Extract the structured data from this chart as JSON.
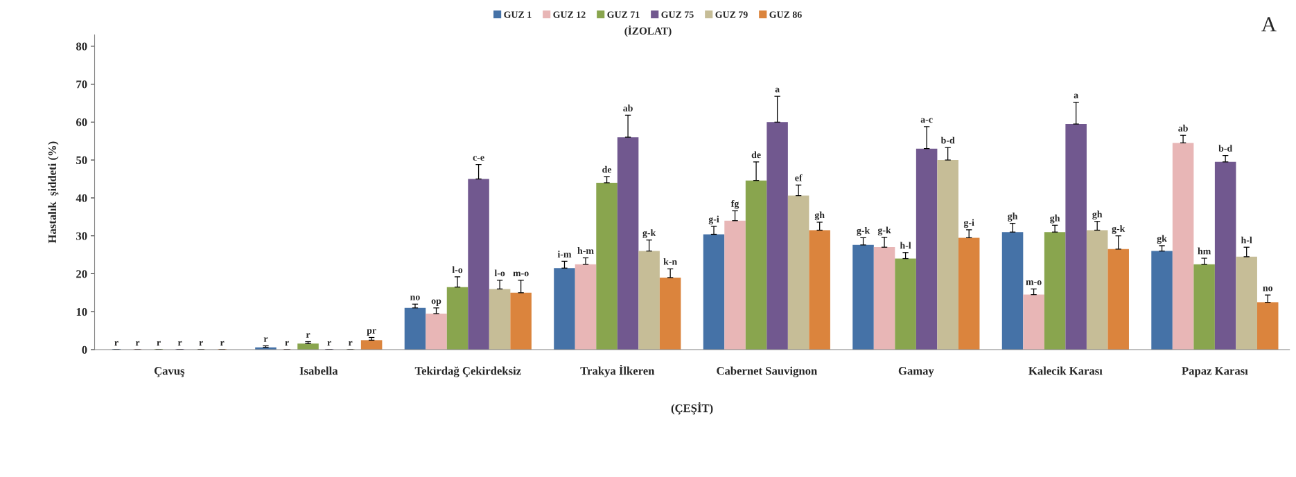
{
  "chart_data": {
    "type": "bar",
    "categories": [
      "Çavuş",
      "Isabella",
      "Tekirdağ Çekirdeksiz",
      "Trakya İlkeren",
      "Cabernet Sauvignon",
      "Gamay",
      "Kalecik Karası",
      "Papaz Karası"
    ],
    "ylabel": "Hastalık  şiddeti (%)",
    "xlabel": "(ÇEŞİT)",
    "legend_title": "(İZOLAT)",
    "annotations": [
      "A"
    ],
    "ylim": [
      0,
      83
    ],
    "yticks": [
      0,
      10,
      20,
      30,
      40,
      50,
      60,
      70,
      80
    ],
    "grid": false,
    "legend": "top",
    "series": [
      {
        "name": "GUZ 1",
        "color": "#4572a7",
        "values": [
          0,
          0.6,
          11,
          21.5,
          30.4,
          27.6,
          31,
          26
        ],
        "errors": [
          [
            0,
            0
          ],
          [
            0.6,
            1.0
          ],
          [
            11,
            12
          ],
          [
            21.5,
            23.3
          ],
          [
            30.4,
            32.5
          ],
          [
            27.6,
            29.5
          ],
          [
            31,
            33.3
          ],
          [
            26,
            27.4
          ]
        ],
        "value_labels": [
          "r",
          "r",
          "no",
          "i-m",
          "g-i",
          "g-k",
          "gh",
          "gk"
        ]
      },
      {
        "name": "GUZ 12",
        "color": "#e8b6b6",
        "values": [
          0,
          0,
          9.5,
          22.5,
          34,
          27,
          14.5,
          54.5
        ],
        "errors": [
          [
            0,
            0
          ],
          [
            0,
            0
          ],
          [
            9.5,
            11
          ],
          [
            22.5,
            24.2
          ],
          [
            34,
            36.6
          ],
          [
            27,
            29.6
          ],
          [
            14.5,
            16
          ],
          [
            54.5,
            56.5
          ]
        ],
        "value_labels": [
          "r",
          "r",
          "op",
          "h-m",
          "fg",
          "g-k",
          "m-o",
          "ab"
        ]
      },
      {
        "name": "GUZ 71",
        "color": "#89a54e",
        "values": [
          0,
          1.6,
          16.5,
          44,
          44.6,
          24,
          31,
          22.5
        ],
        "errors": [
          [
            0,
            0
          ],
          [
            1.6,
            2.1
          ],
          [
            16.5,
            19.2
          ],
          [
            44,
            45.6
          ],
          [
            44.6,
            49.5
          ],
          [
            24,
            25.6
          ],
          [
            31,
            32.8
          ],
          [
            22.5,
            24.1
          ]
        ],
        "value_labels": [
          "r",
          "r",
          "l-o",
          "de",
          "de",
          "h-l",
          "gh",
          "hm"
        ]
      },
      {
        "name": "GUZ 75",
        "color": "#71588f",
        "values": [
          0,
          0,
          45,
          56,
          60,
          53,
          59.5,
          49.5
        ],
        "errors": [
          [
            0,
            0
          ],
          [
            0,
            0
          ],
          [
            45,
            48.8
          ],
          [
            56,
            61.8
          ],
          [
            60,
            66.8
          ],
          [
            53,
            58.8
          ],
          [
            59.5,
            65.2
          ],
          [
            49.5,
            51.2
          ]
        ],
        "value_labels": [
          "r",
          "r",
          "c-e",
          "ab",
          "a",
          "a-c",
          "a",
          "b-d"
        ]
      },
      {
        "name": "GUZ 79",
        "color": "#c6bd97",
        "values": [
          0,
          0,
          16,
          26,
          40.6,
          50,
          31.5,
          24.5
        ],
        "errors": [
          [
            0,
            0
          ],
          [
            0,
            0
          ],
          [
            16,
            18.3
          ],
          [
            26,
            28.9
          ],
          [
            40.6,
            43.4
          ],
          [
            50,
            53.3
          ],
          [
            31.5,
            33.8
          ],
          [
            24.5,
            27
          ]
        ],
        "value_labels": [
          "r",
          "r",
          "l-o",
          "g-k",
          "ef",
          "b-d",
          "gh",
          "h-l"
        ]
      },
      {
        "name": "GUZ 86",
        "color": "#db843d",
        "values": [
          0,
          2.5,
          15,
          19,
          31.5,
          29.5,
          26.5,
          12.5
        ],
        "errors": [
          [
            0,
            0
          ],
          [
            2.5,
            3.2
          ],
          [
            15,
            18.3
          ],
          [
            19,
            21.3
          ],
          [
            31.5,
            33.6
          ],
          [
            29.5,
            31.6
          ],
          [
            26.5,
            30
          ],
          [
            12.5,
            14.4
          ]
        ],
        "value_labels": [
          "r",
          "pr",
          "m-o",
          "k-n",
          "gh",
          "g-i",
          "g-k",
          "no"
        ]
      }
    ]
  }
}
